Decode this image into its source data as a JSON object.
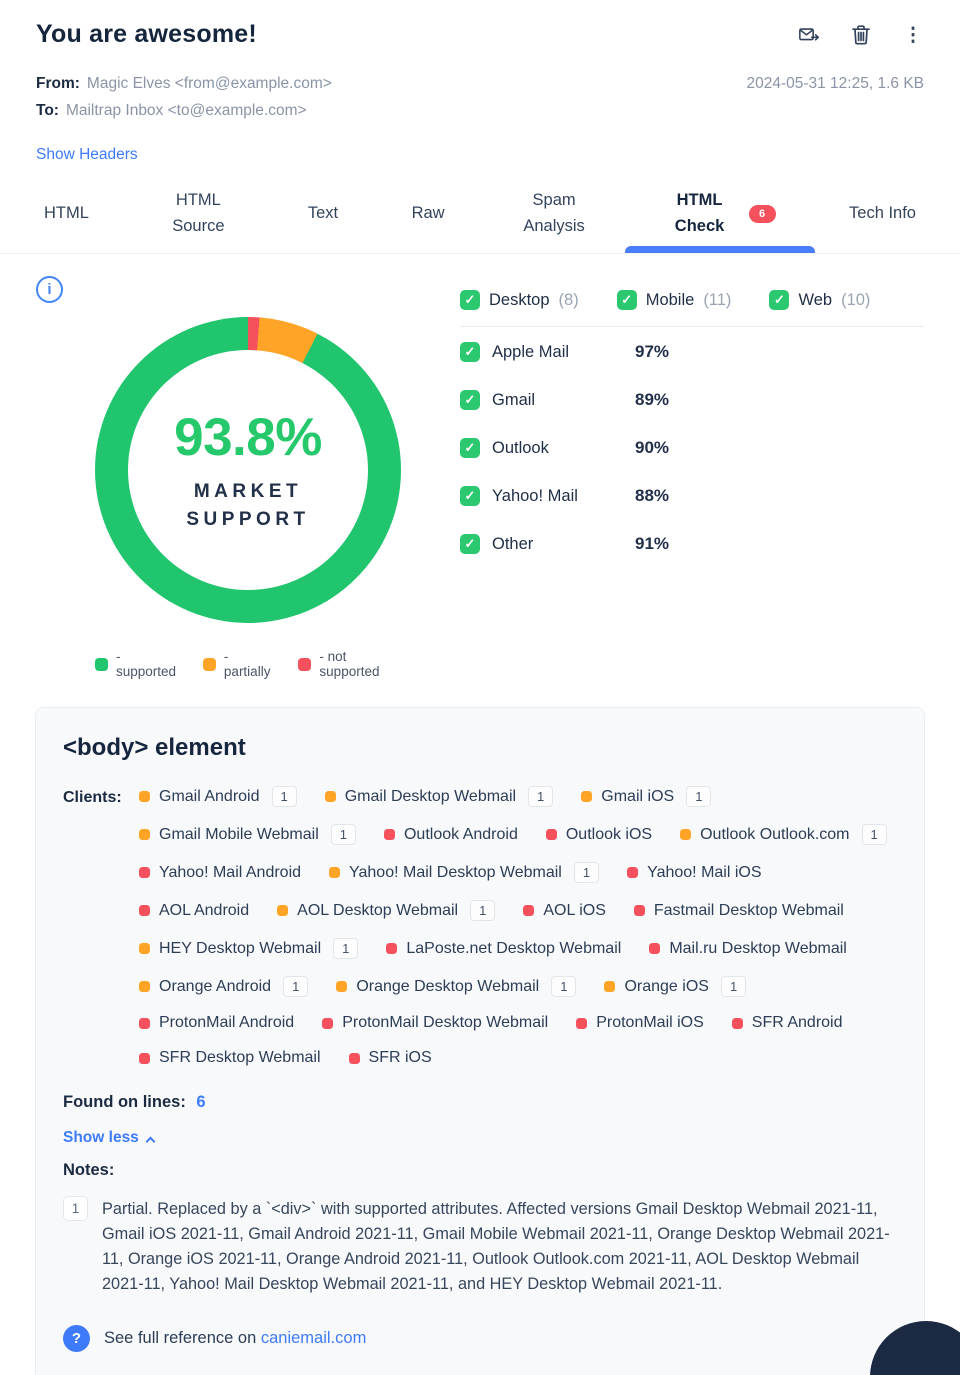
{
  "header": {
    "title": "You are awesome!",
    "from_label": "From:",
    "from_value": "Magic Elves <from@example.com>",
    "to_label": "To:",
    "to_value": "Mailtrap Inbox <to@example.com>",
    "meta_right": "2024-05-31 12:25, 1.6 KB",
    "show_headers": "Show Headers"
  },
  "tabs": [
    {
      "label": "HTML",
      "active": false
    },
    {
      "label": "HTML Source",
      "active": false
    },
    {
      "label": "Text",
      "active": false
    },
    {
      "label": "Raw",
      "active": false
    },
    {
      "label": "Spam Analysis",
      "active": false
    },
    {
      "label": "HTML Check",
      "active": true,
      "badge": "6"
    },
    {
      "label": "Tech Info",
      "active": false
    }
  ],
  "chart_data": {
    "type": "pie",
    "title": "Market support donut",
    "center_value": "93.8%",
    "center_caption": [
      "MARKET",
      "SUPPORT"
    ],
    "slices": [
      {
        "name": "not supported",
        "value": 1.2,
        "color": "#f4515c"
      },
      {
        "name": "partially",
        "value": 6.3,
        "color": "#ffa426"
      },
      {
        "name": "supported",
        "value": 92.5,
        "color": "#21c56d"
      }
    ],
    "legend": [
      {
        "label": "- supported",
        "color": "#21c56d"
      },
      {
        "label": "- partially",
        "color": "#ffa426"
      },
      {
        "label": "- not supported",
        "color": "#f4515c"
      }
    ]
  },
  "filters": [
    {
      "label": "Desktop",
      "count": "(8)"
    },
    {
      "label": "Mobile",
      "count": "(11)"
    },
    {
      "label": "Web",
      "count": "(10)"
    }
  ],
  "support_rows": [
    {
      "label": "Apple Mail",
      "pct": "97%"
    },
    {
      "label": "Gmail",
      "pct": "89%"
    },
    {
      "label": "Outlook",
      "pct": "90%"
    },
    {
      "label": "Yahoo! Mail",
      "pct": "88%"
    },
    {
      "label": "Other",
      "pct": "91%"
    }
  ],
  "status_colors": {
    "partial": "#ffa426",
    "not": "#f4515c"
  },
  "issue_card": {
    "title": "<body> element",
    "clients_label": "Clients:",
    "clients": [
      {
        "label": "Gmail Android",
        "status": "partial",
        "note": "1"
      },
      {
        "label": "Gmail Desktop Webmail",
        "status": "partial",
        "note": "1"
      },
      {
        "label": "Gmail iOS",
        "status": "partial",
        "note": "1"
      },
      {
        "label": "Gmail Mobile Webmail",
        "status": "partial",
        "note": "1"
      },
      {
        "label": "Outlook Android",
        "status": "not",
        "note": null
      },
      {
        "label": "Outlook iOS",
        "status": "not",
        "note": null
      },
      {
        "label": "Outlook Outlook.com",
        "status": "partial",
        "note": "1"
      },
      {
        "label": "Yahoo! Mail Android",
        "status": "not",
        "note": null
      },
      {
        "label": "Yahoo! Mail Desktop Webmail",
        "status": "partial",
        "note": "1"
      },
      {
        "label": "Yahoo! Mail iOS",
        "status": "not",
        "note": null
      },
      {
        "label": "AOL Android",
        "status": "not",
        "note": null
      },
      {
        "label": "AOL Desktop Webmail",
        "status": "partial",
        "note": "1"
      },
      {
        "label": "AOL iOS",
        "status": "not",
        "note": null
      },
      {
        "label": "Fastmail Desktop Webmail",
        "status": "not",
        "note": null
      },
      {
        "label": "HEY Desktop Webmail",
        "status": "partial",
        "note": "1"
      },
      {
        "label": "LaPoste.net Desktop Webmail",
        "status": "not",
        "note": null
      },
      {
        "label": "Mail.ru Desktop Webmail",
        "status": "not",
        "note": null
      },
      {
        "label": "Orange Android",
        "status": "partial",
        "note": "1"
      },
      {
        "label": "Orange Desktop Webmail",
        "status": "partial",
        "note": "1"
      },
      {
        "label": "Orange iOS",
        "status": "partial",
        "note": "1"
      },
      {
        "label": "ProtonMail Android",
        "status": "not",
        "note": null
      },
      {
        "label": "ProtonMail Desktop Webmail",
        "status": "not",
        "note": null
      },
      {
        "label": "ProtonMail iOS",
        "status": "not",
        "note": null
      },
      {
        "label": "SFR Android",
        "status": "not",
        "note": null
      },
      {
        "label": "SFR Desktop Webmail",
        "status": "not",
        "note": null
      },
      {
        "label": "SFR iOS",
        "status": "not",
        "note": null
      }
    ],
    "found_label": "Found on lines:",
    "found_value": "6",
    "show_less": "Show less",
    "notes_label": "Notes:",
    "note_index": "1",
    "note_text": "Partial. Replaced by a `<div>` with supported attributes. Affected versions Gmail Desktop Webmail 2021-11, Gmail iOS 2021-11, Gmail Android 2021-11, Gmail Mobile Webmail 2021-11, Orange Desktop Webmail 2021-11, Orange iOS 2021-11, Orange Android 2021-11, Outlook Outlook.com 2021-11, AOL Desktop Webmail 2021-11, Yahoo! Mail Desktop Webmail 2021-11, and HEY Desktop Webmail 2021-11.",
    "reference_prefix": "See full reference on",
    "reference_link": "caniemail.com"
  }
}
